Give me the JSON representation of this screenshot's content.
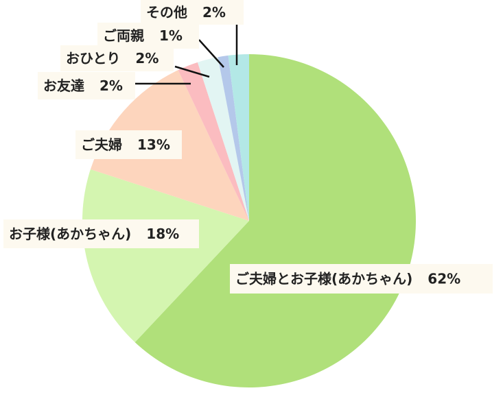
{
  "chart_data": {
    "type": "pie",
    "categories": [
      "ご夫婦とお子様(あかちゃん)",
      "お子様(あかちゃん)",
      "ご夫婦",
      "お友達",
      "おひとり",
      "ご両親",
      "その他"
    ],
    "values": [
      62,
      18,
      13,
      2,
      2,
      1,
      2
    ],
    "value_labels": [
      "62%",
      "18%",
      "13%",
      "2%",
      "2%",
      "1%",
      "2%"
    ],
    "colors": [
      "#b0e07a",
      "#d4f5b0",
      "#fdd5bd",
      "#fbbcc0",
      "#e2f5f3",
      "#b4c8ea",
      "#b3e8e6"
    ]
  }
}
